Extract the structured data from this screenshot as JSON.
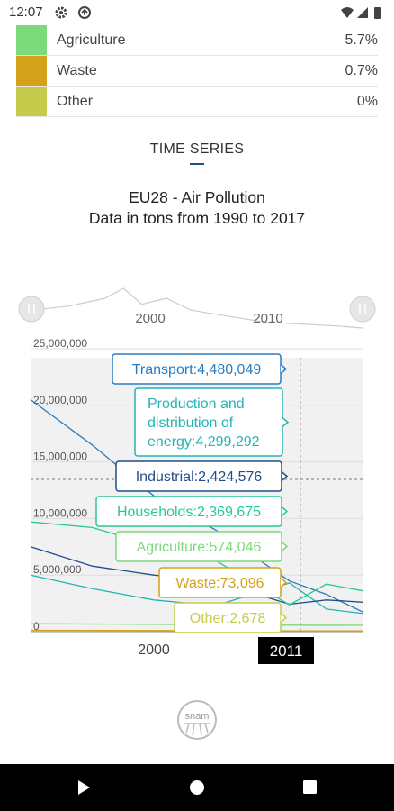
{
  "status": {
    "time": "12:07"
  },
  "legend": [
    {
      "name": "Agriculture",
      "pct": "5.7%",
      "color": "#7cd97c"
    },
    {
      "name": "Waste",
      "pct": "0.7%",
      "color": "#d4a21a"
    },
    {
      "name": "Other",
      "pct": "0%",
      "color": "#c5cc4b"
    }
  ],
  "section": {
    "title": "TIME SERIES"
  },
  "chart_title": {
    "line1": "EU28 - Air Pollution",
    "line2": "Data in tons from 1990 to 2017"
  },
  "navigator": {
    "labels": [
      "2000",
      "2010"
    ]
  },
  "crosshair_label": "2011",
  "logo_text": "snam",
  "chart_data": {
    "type": "line",
    "x_range": [
      1990,
      2017
    ],
    "ylim": [
      0,
      25000000
    ],
    "y_ticks": [
      "25,000,000",
      "20,000,000",
      "15,000,000",
      "10,000,000",
      "5,000,000",
      "0"
    ],
    "x_ticks": [
      2000,
      2011
    ],
    "x_tick_labels": [
      "2000",
      "2011"
    ],
    "crosshair_year": 2011,
    "series": [
      {
        "name": "Transport",
        "color": "#2a7bbf",
        "values": [
          [
            1990,
            20500000
          ],
          [
            1995,
            16500000
          ],
          [
            2000,
            12000000
          ],
          [
            2005,
            9000000
          ],
          [
            2011,
            4480049
          ],
          [
            2014,
            3300000
          ],
          [
            2017,
            1700000
          ]
        ],
        "tooltip": "Transport:4,480,049"
      },
      {
        "name": "Production and distribution of energy",
        "color": "#26b3b3",
        "values": [
          [
            1990,
            5000000
          ],
          [
            1995,
            3800000
          ],
          [
            2000,
            2800000
          ],
          [
            2005,
            2300000
          ],
          [
            2011,
            4299292
          ],
          [
            2014,
            2000000
          ],
          [
            2017,
            1600000
          ]
        ],
        "tooltip": "Production and distribution of energy:4,299,292"
      },
      {
        "name": "Industrial",
        "color": "#1f4e8c",
        "values": [
          [
            1990,
            7500000
          ],
          [
            1995,
            5800000
          ],
          [
            2000,
            5000000
          ],
          [
            2005,
            4400000
          ],
          [
            2011,
            2424576
          ],
          [
            2014,
            2800000
          ],
          [
            2017,
            2600000
          ]
        ],
        "tooltip": "Industrial:2,424,576"
      },
      {
        "name": "Households",
        "color": "#27c79a",
        "values": [
          [
            1990,
            9700000
          ],
          [
            1995,
            9200000
          ],
          [
            2000,
            7600000
          ],
          [
            2005,
            6300000
          ],
          [
            2011,
            2369675
          ],
          [
            2014,
            4200000
          ],
          [
            2017,
            3600000
          ]
        ],
        "tooltip": "Households:2,369,675"
      },
      {
        "name": "Agriculture",
        "color": "#7cd97c",
        "values": [
          [
            1990,
            700000
          ],
          [
            2000,
            650000
          ],
          [
            2011,
            574046
          ],
          [
            2017,
            560000
          ]
        ],
        "tooltip": "Agriculture:574,046"
      },
      {
        "name": "Waste",
        "color": "#d4a21a",
        "values": [
          [
            1990,
            120000
          ],
          [
            2000,
            95000
          ],
          [
            2011,
            73096
          ],
          [
            2017,
            65000
          ]
        ],
        "tooltip": "Waste:73,096"
      },
      {
        "name": "Other",
        "color": "#c5cc4b",
        "values": [
          [
            1990,
            5000
          ],
          [
            2000,
            3500
          ],
          [
            2011,
            2678
          ],
          [
            2017,
            2400
          ]
        ],
        "tooltip": "Other:2,678"
      }
    ]
  }
}
